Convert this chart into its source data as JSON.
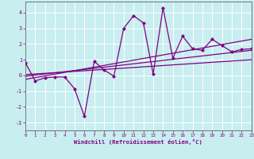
{
  "xlabel": "Windchill (Refroidissement éolien,°C)",
  "bg_color": "#c8eef0",
  "grid_color": "#b0d8da",
  "line_color": "#800080",
  "x_data": [
    0,
    1,
    2,
    3,
    4,
    5,
    6,
    7,
    8,
    9,
    10,
    11,
    12,
    13,
    14,
    15,
    16,
    17,
    18,
    19,
    20,
    21,
    22,
    23
  ],
  "y_data": [
    0.8,
    -0.35,
    -0.15,
    -0.1,
    -0.1,
    -0.85,
    -2.6,
    0.9,
    0.35,
    -0.05,
    3.0,
    3.8,
    3.35,
    0.1,
    4.3,
    1.1,
    2.5,
    1.7,
    1.6,
    2.3,
    1.9,
    1.5,
    1.65,
    1.7
  ],
  "line1_x": [
    0,
    23
  ],
  "line1_y": [
    -0.25,
    2.3
  ],
  "line2_x": [
    0,
    23
  ],
  "line2_y": [
    -0.05,
    1.6
  ],
  "line3_x": [
    0,
    23
  ],
  "line3_y": [
    0.05,
    1.0
  ],
  "xlim": [
    0,
    23
  ],
  "ylim": [
    -3.5,
    4.7
  ],
  "yticks": [
    -3,
    -2,
    -1,
    0,
    1,
    2,
    3,
    4
  ],
  "xticks": [
    0,
    1,
    2,
    3,
    4,
    5,
    6,
    7,
    8,
    9,
    10,
    11,
    12,
    13,
    14,
    15,
    16,
    17,
    18,
    19,
    20,
    21,
    22,
    23
  ]
}
